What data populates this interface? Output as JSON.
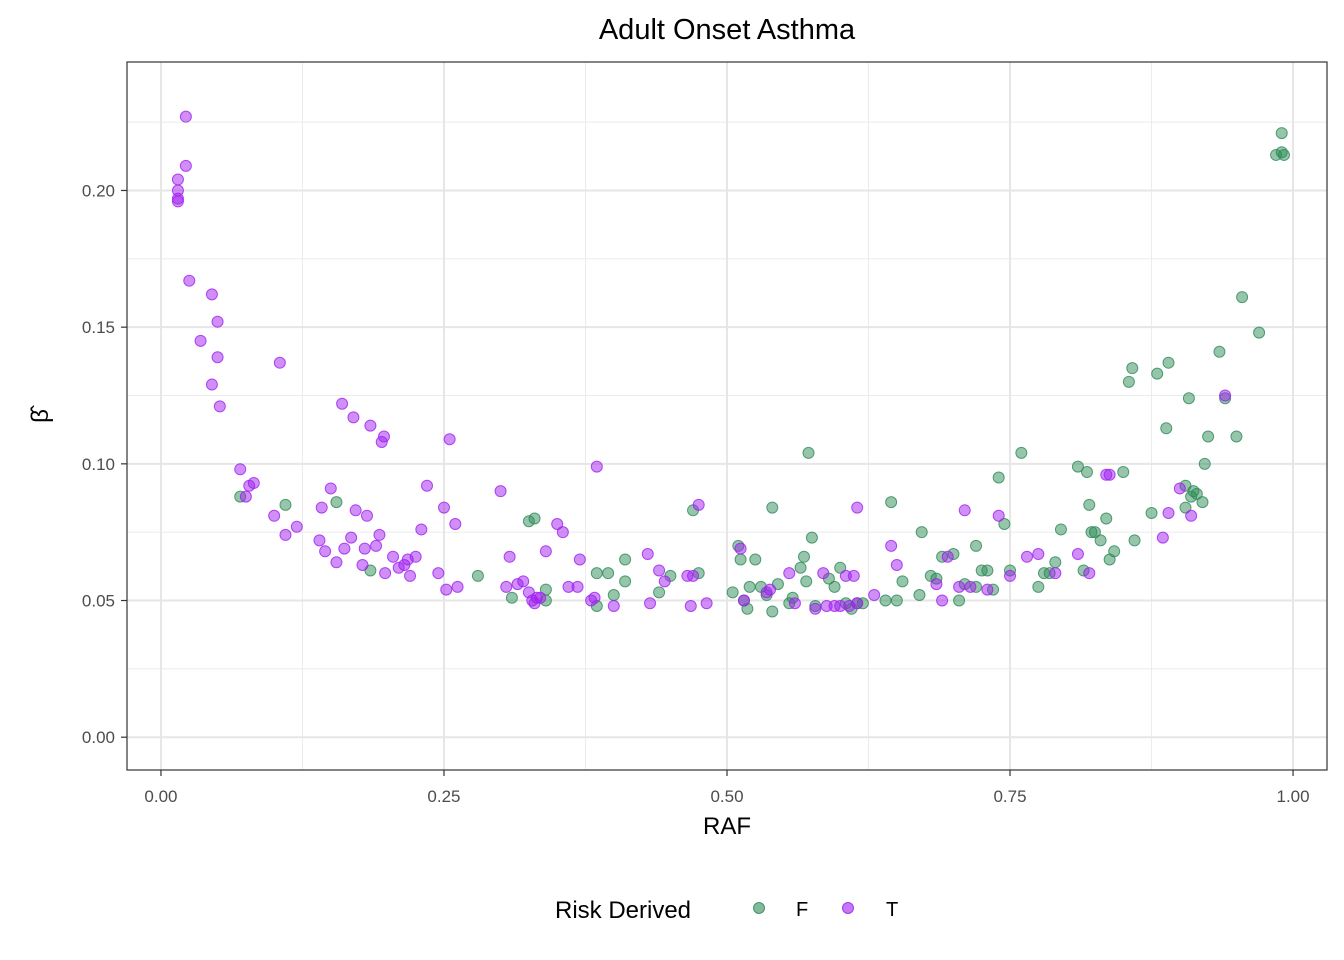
{
  "chart_data": {
    "type": "scatter",
    "title": "Adult Onset Asthma",
    "xlabel": "RAF",
    "ylabel": "β̂",
    "xlim": [
      -0.03,
      1.03
    ],
    "ylim": [
      -0.012,
      0.247
    ],
    "x_ticks": [
      0.0,
      0.25,
      0.5,
      0.75,
      1.0
    ],
    "x_tick_labels": [
      "0.00",
      "0.25",
      "0.50",
      "0.75",
      "1.00"
    ],
    "y_ticks": [
      0.0,
      0.05,
      0.1,
      0.15,
      0.2
    ],
    "y_tick_labels": [
      "0.00",
      "0.05",
      "0.10",
      "0.15",
      "0.20"
    ],
    "grid": true,
    "legend": {
      "title": "Risk Derived",
      "position": "bottom"
    },
    "series": [
      {
        "name": "F",
        "color": "#2e8b57",
        "points": [
          [
            0.07,
            0.088
          ],
          [
            0.11,
            0.085
          ],
          [
            0.155,
            0.086
          ],
          [
            0.185,
            0.061
          ],
          [
            0.28,
            0.059
          ],
          [
            0.31,
            0.051
          ],
          [
            0.325,
            0.079
          ],
          [
            0.33,
            0.08
          ],
          [
            0.34,
            0.054
          ],
          [
            0.34,
            0.05
          ],
          [
            0.385,
            0.06
          ],
          [
            0.385,
            0.048
          ],
          [
            0.395,
            0.06
          ],
          [
            0.4,
            0.052
          ],
          [
            0.41,
            0.057
          ],
          [
            0.41,
            0.065
          ],
          [
            0.44,
            0.053
          ],
          [
            0.45,
            0.059
          ],
          [
            0.47,
            0.083
          ],
          [
            0.475,
            0.06
          ],
          [
            0.505,
            0.053
          ],
          [
            0.51,
            0.07
          ],
          [
            0.512,
            0.065
          ],
          [
            0.515,
            0.05
          ],
          [
            0.518,
            0.047
          ],
          [
            0.52,
            0.055
          ],
          [
            0.525,
            0.065
          ],
          [
            0.53,
            0.055
          ],
          [
            0.535,
            0.052
          ],
          [
            0.54,
            0.084
          ],
          [
            0.54,
            0.046
          ],
          [
            0.545,
            0.056
          ],
          [
            0.555,
            0.049
          ],
          [
            0.558,
            0.051
          ],
          [
            0.565,
            0.062
          ],
          [
            0.568,
            0.066
          ],
          [
            0.57,
            0.057
          ],
          [
            0.572,
            0.104
          ],
          [
            0.575,
            0.073
          ],
          [
            0.578,
            0.048
          ],
          [
            0.59,
            0.058
          ],
          [
            0.595,
            0.055
          ],
          [
            0.6,
            0.062
          ],
          [
            0.605,
            0.049
          ],
          [
            0.61,
            0.047
          ],
          [
            0.615,
            0.049
          ],
          [
            0.62,
            0.049
          ],
          [
            0.64,
            0.05
          ],
          [
            0.645,
            0.086
          ],
          [
            0.65,
            0.05
          ],
          [
            0.655,
            0.057
          ],
          [
            0.67,
            0.052
          ],
          [
            0.672,
            0.075
          ],
          [
            0.68,
            0.059
          ],
          [
            0.685,
            0.058
          ],
          [
            0.69,
            0.066
          ],
          [
            0.7,
            0.067
          ],
          [
            0.705,
            0.05
          ],
          [
            0.71,
            0.056
          ],
          [
            0.72,
            0.055
          ],
          [
            0.72,
            0.07
          ],
          [
            0.725,
            0.061
          ],
          [
            0.73,
            0.061
          ],
          [
            0.735,
            0.054
          ],
          [
            0.74,
            0.095
          ],
          [
            0.745,
            0.078
          ],
          [
            0.75,
            0.061
          ],
          [
            0.76,
            0.104
          ],
          [
            0.775,
            0.055
          ],
          [
            0.78,
            0.06
          ],
          [
            0.785,
            0.06
          ],
          [
            0.79,
            0.064
          ],
          [
            0.795,
            0.076
          ],
          [
            0.81,
            0.099
          ],
          [
            0.815,
            0.061
          ],
          [
            0.818,
            0.097
          ],
          [
            0.82,
            0.085
          ],
          [
            0.822,
            0.075
          ],
          [
            0.825,
            0.075
          ],
          [
            0.83,
            0.072
          ],
          [
            0.835,
            0.08
          ],
          [
            0.838,
            0.065
          ],
          [
            0.842,
            0.068
          ],
          [
            0.85,
            0.097
          ],
          [
            0.855,
            0.13
          ],
          [
            0.858,
            0.135
          ],
          [
            0.86,
            0.072
          ],
          [
            0.875,
            0.082
          ],
          [
            0.88,
            0.133
          ],
          [
            0.888,
            0.113
          ],
          [
            0.89,
            0.137
          ],
          [
            0.905,
            0.084
          ],
          [
            0.905,
            0.092
          ],
          [
            0.908,
            0.124
          ],
          [
            0.91,
            0.088
          ],
          [
            0.912,
            0.09
          ],
          [
            0.915,
            0.089
          ],
          [
            0.92,
            0.086
          ],
          [
            0.922,
            0.1
          ],
          [
            0.925,
            0.11
          ],
          [
            0.935,
            0.141
          ],
          [
            0.94,
            0.124
          ],
          [
            0.95,
            0.11
          ],
          [
            0.955,
            0.161
          ],
          [
            0.97,
            0.148
          ],
          [
            0.985,
            0.213
          ],
          [
            0.99,
            0.221
          ],
          [
            0.99,
            0.214
          ],
          [
            0.992,
            0.213
          ]
        ]
      },
      {
        "name": "T",
        "color": "#a020f0",
        "points": [
          [
            0.015,
            0.204
          ],
          [
            0.015,
            0.2
          ],
          [
            0.015,
            0.197
          ],
          [
            0.015,
            0.196
          ],
          [
            0.022,
            0.227
          ],
          [
            0.022,
            0.209
          ],
          [
            0.025,
            0.167
          ],
          [
            0.035,
            0.145
          ],
          [
            0.045,
            0.162
          ],
          [
            0.045,
            0.129
          ],
          [
            0.05,
            0.152
          ],
          [
            0.05,
            0.139
          ],
          [
            0.052,
            0.121
          ],
          [
            0.07,
            0.098
          ],
          [
            0.075,
            0.088
          ],
          [
            0.078,
            0.092
          ],
          [
            0.082,
            0.093
          ],
          [
            0.1,
            0.081
          ],
          [
            0.105,
            0.137
          ],
          [
            0.11,
            0.074
          ],
          [
            0.12,
            0.077
          ],
          [
            0.14,
            0.072
          ],
          [
            0.142,
            0.084
          ],
          [
            0.145,
            0.068
          ],
          [
            0.15,
            0.091
          ],
          [
            0.155,
            0.064
          ],
          [
            0.16,
            0.122
          ],
          [
            0.162,
            0.069
          ],
          [
            0.168,
            0.073
          ],
          [
            0.17,
            0.117
          ],
          [
            0.172,
            0.083
          ],
          [
            0.178,
            0.063
          ],
          [
            0.18,
            0.069
          ],
          [
            0.182,
            0.081
          ],
          [
            0.185,
            0.114
          ],
          [
            0.19,
            0.07
          ],
          [
            0.193,
            0.074
          ],
          [
            0.195,
            0.108
          ],
          [
            0.197,
            0.11
          ],
          [
            0.198,
            0.06
          ],
          [
            0.205,
            0.066
          ],
          [
            0.21,
            0.062
          ],
          [
            0.215,
            0.063
          ],
          [
            0.218,
            0.065
          ],
          [
            0.22,
            0.059
          ],
          [
            0.225,
            0.066
          ],
          [
            0.23,
            0.076
          ],
          [
            0.235,
            0.092
          ],
          [
            0.245,
            0.06
          ],
          [
            0.25,
            0.084
          ],
          [
            0.252,
            0.054
          ],
          [
            0.255,
            0.109
          ],
          [
            0.26,
            0.078
          ],
          [
            0.262,
            0.055
          ],
          [
            0.3,
            0.09
          ],
          [
            0.305,
            0.055
          ],
          [
            0.308,
            0.066
          ],
          [
            0.315,
            0.056
          ],
          [
            0.32,
            0.057
          ],
          [
            0.325,
            0.053
          ],
          [
            0.328,
            0.05
          ],
          [
            0.33,
            0.049
          ],
          [
            0.332,
            0.051
          ],
          [
            0.335,
            0.051
          ],
          [
            0.34,
            0.068
          ],
          [
            0.35,
            0.078
          ],
          [
            0.355,
            0.075
          ],
          [
            0.36,
            0.055
          ],
          [
            0.368,
            0.055
          ],
          [
            0.37,
            0.065
          ],
          [
            0.38,
            0.05
          ],
          [
            0.383,
            0.051
          ],
          [
            0.385,
            0.099
          ],
          [
            0.4,
            0.048
          ],
          [
            0.43,
            0.067
          ],
          [
            0.432,
            0.049
          ],
          [
            0.44,
            0.061
          ],
          [
            0.445,
            0.057
          ],
          [
            0.465,
            0.059
          ],
          [
            0.468,
            0.048
          ],
          [
            0.47,
            0.059
          ],
          [
            0.475,
            0.085
          ],
          [
            0.482,
            0.049
          ],
          [
            0.512,
            0.069
          ],
          [
            0.515,
            0.05
          ],
          [
            0.535,
            0.053
          ],
          [
            0.538,
            0.054
          ],
          [
            0.555,
            0.06
          ],
          [
            0.56,
            0.049
          ],
          [
            0.578,
            0.047
          ],
          [
            0.585,
            0.06
          ],
          [
            0.588,
            0.048
          ],
          [
            0.595,
            0.048
          ],
          [
            0.6,
            0.048
          ],
          [
            0.605,
            0.059
          ],
          [
            0.608,
            0.048
          ],
          [
            0.612,
            0.059
          ],
          [
            0.615,
            0.084
          ],
          [
            0.615,
            0.049
          ],
          [
            0.63,
            0.052
          ],
          [
            0.645,
            0.07
          ],
          [
            0.65,
            0.063
          ],
          [
            0.685,
            0.056
          ],
          [
            0.69,
            0.05
          ],
          [
            0.695,
            0.066
          ],
          [
            0.705,
            0.055
          ],
          [
            0.71,
            0.083
          ],
          [
            0.715,
            0.055
          ],
          [
            0.73,
            0.054
          ],
          [
            0.74,
            0.081
          ],
          [
            0.75,
            0.059
          ],
          [
            0.765,
            0.066
          ],
          [
            0.775,
            0.067
          ],
          [
            0.79,
            0.06
          ],
          [
            0.81,
            0.067
          ],
          [
            0.82,
            0.06
          ],
          [
            0.835,
            0.096
          ],
          [
            0.838,
            0.096
          ],
          [
            0.885,
            0.073
          ],
          [
            0.89,
            0.082
          ],
          [
            0.9,
            0.091
          ],
          [
            0.91,
            0.081
          ],
          [
            0.94,
            0.125
          ]
        ]
      }
    ]
  }
}
